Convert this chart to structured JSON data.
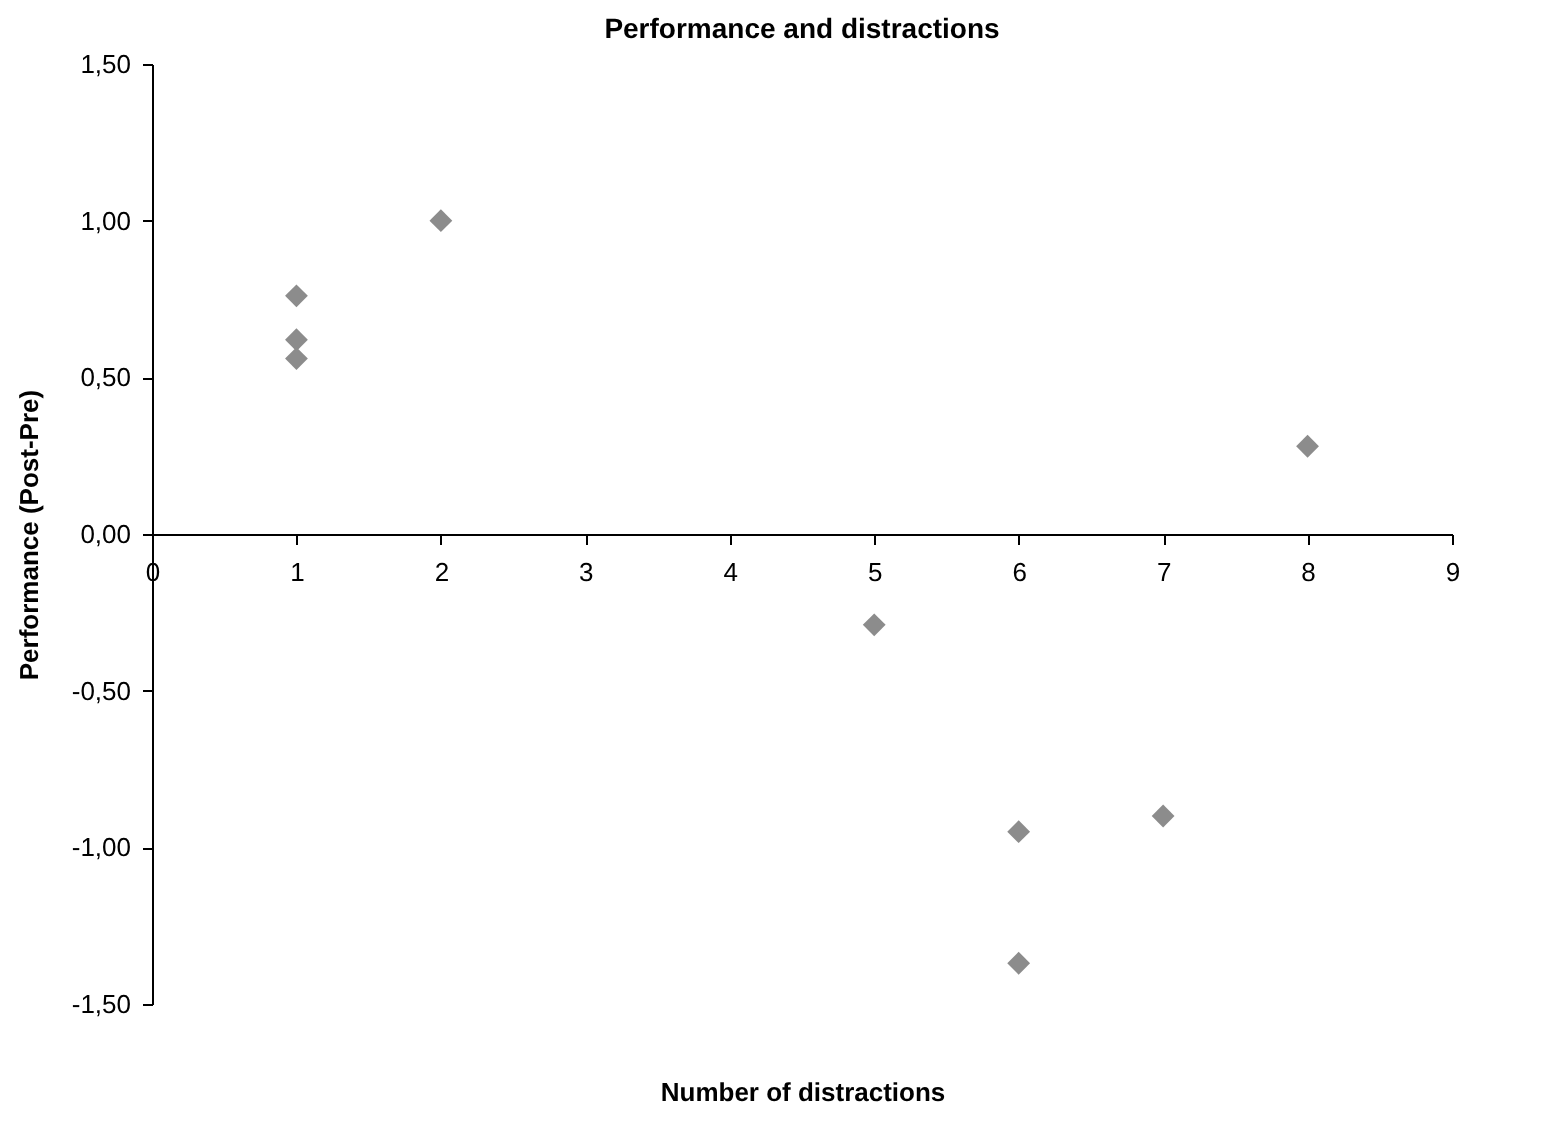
{
  "chart_data": {
    "type": "scatter",
    "title": "Performance and distractions",
    "xlabel": "Number of distractions",
    "ylabel": "Performance (Post-Pre)",
    "x": [
      1,
      1,
      1,
      2,
      5,
      6,
      6,
      7,
      8
    ],
    "series": [
      {
        "color": "#8c8c8c",
        "values": [
          0.76,
          0.62,
          0.56,
          1.0,
          -0.29,
          -0.95,
          -1.37,
          -0.9,
          0.28
        ]
      }
    ],
    "xlim": [
      0,
      9
    ],
    "xticks": [
      0,
      1,
      2,
      3,
      4,
      5,
      6,
      7,
      8,
      9
    ],
    "ylim": [
      -1.5,
      1.5
    ],
    "yticks": [
      {
        "value": -1.5,
        "label": "-1,50"
      },
      {
        "value": -1,
        "label": "-1,00"
      },
      {
        "value": -0.5,
        "label": "-0,50"
      },
      {
        "value": 0,
        "label": "0,00"
      },
      {
        "value": 0.5,
        "label": "0,50"
      },
      {
        "value": 1,
        "label": "1,00"
      },
      {
        "value": 1.5,
        "label": "1,50"
      }
    ],
    "grid": false,
    "marker": "diamond"
  }
}
